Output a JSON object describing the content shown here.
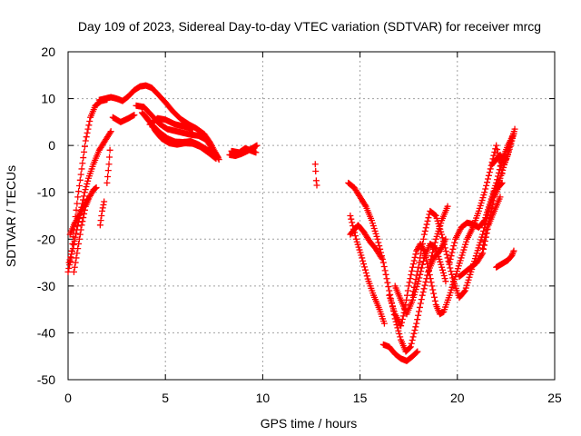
{
  "chart_data": {
    "type": "scatter",
    "title": "Day 109 of 2023, Sidereal Day-to-day VTEC variation (SDTVAR) for receiver mrcg",
    "xlabel": "GPS time / hours",
    "ylabel": "SDTVAR / TECUs",
    "xlim": [
      0,
      25
    ],
    "ylim": [
      -50,
      20
    ],
    "x_ticks": [
      "0",
      "5",
      "10",
      "15",
      "20",
      "25"
    ],
    "y_ticks": [
      "20",
      "10",
      "0",
      "-10",
      "-20",
      "-30",
      "-40",
      "-50"
    ],
    "x_tick_values": [
      0,
      5,
      10,
      15,
      20,
      25
    ],
    "y_tick_values": [
      20,
      10,
      0,
      -10,
      -20,
      -30,
      -40,
      -50
    ],
    "grid": true,
    "marker": "+",
    "color": "#ff0000",
    "tracks": [
      [
        [
          0.0,
          -27
        ],
        [
          0.15,
          -24
        ],
        [
          0.3,
          -18
        ],
        [
          0.5,
          -11
        ],
        [
          0.7,
          -5
        ],
        [
          0.9,
          1
        ],
        [
          1.15,
          6
        ],
        [
          1.4,
          8.5
        ],
        [
          1.7,
          9.5
        ],
        [
          2.0,
          9.8
        ]
      ],
      [
        [
          0.05,
          -25
        ],
        [
          0.25,
          -22
        ],
        [
          0.45,
          -18
        ],
        [
          0.65,
          -14
        ],
        [
          0.85,
          -10
        ],
        [
          1.05,
          -7
        ],
        [
          1.3,
          -4
        ],
        [
          1.6,
          -1
        ],
        [
          1.9,
          1
        ],
        [
          2.2,
          3
        ]
      ],
      [
        [
          0.3,
          -27
        ],
        [
          0.5,
          -22
        ],
        [
          0.7,
          -17
        ],
        [
          0.9,
          -13
        ],
        [
          1.1,
          -11
        ],
        [
          1.3,
          -9.5
        ],
        [
          1.45,
          -9
        ]
      ],
      [
        [
          0.1,
          -19
        ],
        [
          0.3,
          -17
        ],
        [
          0.55,
          -15
        ],
        [
          0.8,
          -13
        ],
        [
          1.0,
          -11.5
        ]
      ],
      [
        [
          1.65,
          -17
        ],
        [
          1.75,
          -14
        ],
        [
          1.85,
          -12
        ]
      ],
      [
        [
          2.0,
          -8
        ],
        [
          2.1,
          -4
        ],
        [
          2.15,
          -1
        ]
      ],
      [
        [
          2.3,
          6
        ],
        [
          2.7,
          5
        ],
        [
          3.1,
          5.8
        ],
        [
          3.4,
          6.5
        ]
      ],
      [
        [
          1.6,
          9.7
        ],
        [
          1.9,
          10
        ],
        [
          2.2,
          10.3
        ],
        [
          2.5,
          10
        ],
        [
          2.8,
          9.5
        ],
        [
          3.1,
          10.5
        ],
        [
          3.4,
          11.8
        ],
        [
          3.7,
          12.6
        ],
        [
          4.0,
          12.8
        ],
        [
          4.3,
          12.3
        ],
        [
          4.6,
          11
        ],
        [
          5.0,
          9.2
        ],
        [
          5.4,
          7.2
        ],
        [
          5.8,
          5.6
        ],
        [
          6.2,
          4.5
        ],
        [
          6.6,
          3.6
        ],
        [
          7.0,
          2.4
        ],
        [
          7.3,
          0.6
        ],
        [
          7.6,
          -1.8
        ],
        [
          7.75,
          -3
        ]
      ],
      [
        [
          3.5,
          8.5
        ],
        [
          3.9,
          8.2
        ],
        [
          4.3,
          6.4
        ],
        [
          4.7,
          4.6
        ],
        [
          5.1,
          3.5
        ],
        [
          5.5,
          3.1
        ],
        [
          5.9,
          2.7
        ],
        [
          6.3,
          2.3
        ],
        [
          6.7,
          2.1
        ],
        [
          7.1,
          1.2
        ],
        [
          7.4,
          -0.6
        ],
        [
          7.7,
          -2.5
        ]
      ],
      [
        [
          3.9,
          6.6
        ],
        [
          4.3,
          4.5
        ],
        [
          4.7,
          2.8
        ],
        [
          5.1,
          1.5
        ],
        [
          5.5,
          0.8
        ],
        [
          5.9,
          0.7
        ],
        [
          6.3,
          0.9
        ],
        [
          6.7,
          0.2
        ],
        [
          7.1,
          -0.8
        ],
        [
          7.5,
          -1.8
        ]
      ],
      [
        [
          3.8,
          7
        ],
        [
          4.2,
          5
        ],
        [
          4.5,
          3
        ],
        [
          4.8,
          1.5
        ],
        [
          5.2,
          0.5
        ],
        [
          5.6,
          0.2
        ],
        [
          6.0,
          0.5
        ],
        [
          6.4,
          0.4
        ],
        [
          6.8,
          -0.3
        ],
        [
          7.2,
          -1.5
        ],
        [
          7.6,
          -2.8
        ]
      ],
      [
        [
          4.2,
          4.5
        ],
        [
          4.6,
          5.8
        ],
        [
          5.0,
          5.5
        ],
        [
          5.5,
          4.5
        ],
        [
          6.0,
          4
        ],
        [
          6.4,
          3.5
        ]
      ],
      [
        [
          8.3,
          -2
        ],
        [
          8.6,
          -2.2
        ],
        [
          8.9,
          -1.8
        ],
        [
          9.2,
          -1.2
        ],
        [
          9.5,
          -0.5
        ],
        [
          9.7,
          0
        ]
      ],
      [
        [
          8.4,
          -1.2
        ],
        [
          8.8,
          -1.5
        ],
        [
          9.1,
          -0.6
        ],
        [
          9.4,
          -1.1
        ],
        [
          9.65,
          -1.5
        ]
      ],
      [
        [
          12.7,
          -4
        ],
        [
          12.72,
          -5.5
        ],
        [
          12.75,
          -7.5
        ],
        [
          12.78,
          -8.5
        ]
      ],
      [
        [
          14.4,
          -8
        ],
        [
          14.7,
          -9
        ],
        [
          15.0,
          -11
        ],
        [
          15.3,
          -13
        ],
        [
          15.6,
          -16
        ],
        [
          15.9,
          -20
        ],
        [
          16.2,
          -25
        ],
        [
          16.5,
          -31
        ],
        [
          16.8,
          -37
        ],
        [
          17.1,
          -41.5
        ],
        [
          17.35,
          -44
        ],
        [
          17.6,
          -43
        ],
        [
          17.9,
          -38
        ],
        [
          18.2,
          -32
        ],
        [
          18.5,
          -27
        ],
        [
          18.8,
          -24
        ],
        [
          19.1,
          -22.5
        ],
        [
          19.4,
          -20
        ]
      ],
      [
        [
          14.5,
          -15
        ],
        [
          14.8,
          -20
        ],
        [
          15.1,
          -24
        ],
        [
          15.4,
          -28.5
        ],
        [
          15.7,
          -32
        ],
        [
          16.0,
          -35
        ],
        [
          16.25,
          -38
        ]
      ],
      [
        [
          14.5,
          -19
        ],
        [
          14.9,
          -17
        ],
        [
          15.2,
          -18.5
        ],
        [
          15.5,
          -20.5
        ],
        [
          15.8,
          -22
        ],
        [
          16.1,
          -24
        ]
      ],
      [
        [
          16.2,
          -42.5
        ],
        [
          16.5,
          -43
        ],
        [
          16.8,
          -44.5
        ],
        [
          17.1,
          -45.5
        ],
        [
          17.4,
          -46
        ],
        [
          17.7,
          -45
        ],
        [
          17.95,
          -44
        ]
      ],
      [
        [
          16.5,
          -32
        ],
        [
          16.8,
          -36
        ],
        [
          17.1,
          -38.5
        ],
        [
          17.3,
          -35
        ],
        [
          17.5,
          -30
        ],
        [
          17.7,
          -26
        ],
        [
          17.9,
          -22.5
        ],
        [
          18.1,
          -21
        ],
        [
          18.3,
          -22.5
        ],
        [
          18.5,
          -26
        ],
        [
          18.7,
          -30
        ],
        [
          18.9,
          -34
        ],
        [
          19.1,
          -36
        ],
        [
          19.3,
          -35.5
        ],
        [
          19.6,
          -32
        ],
        [
          19.9,
          -28
        ],
        [
          20.2,
          -24
        ],
        [
          20.5,
          -20
        ],
        [
          20.8,
          -17.5
        ],
        [
          21.1,
          -14
        ],
        [
          21.4,
          -10
        ],
        [
          21.7,
          -5
        ],
        [
          22.0,
          0
        ],
        [
          22.3,
          -6
        ]
      ],
      [
        [
          16.8,
          -30
        ],
        [
          17.1,
          -33
        ],
        [
          17.4,
          -36
        ],
        [
          17.7,
          -33
        ],
        [
          18.0,
          -29
        ],
        [
          18.3,
          -24
        ],
        [
          18.6,
          -21
        ],
        [
          18.9,
          -22
        ],
        [
          19.2,
          -26
        ],
        [
          19.4,
          -29
        ]
      ],
      [
        [
          17.7,
          -32
        ],
        [
          18.0,
          -26
        ],
        [
          18.3,
          -19
        ],
        [
          18.6,
          -14
        ],
        [
          18.9,
          -15
        ],
        [
          19.2,
          -19
        ],
        [
          19.5,
          -24
        ],
        [
          19.8,
          -29
        ],
        [
          20.1,
          -32.5
        ],
        [
          20.4,
          -31
        ],
        [
          20.7,
          -27
        ],
        [
          21.0,
          -23
        ],
        [
          21.3,
          -19
        ],
        [
          21.6,
          -14
        ],
        [
          21.9,
          -10
        ],
        [
          22.2,
          -7
        ],
        [
          22.5,
          -3
        ],
        [
          22.8,
          1.5
        ],
        [
          22.95,
          3.5
        ]
      ],
      [
        [
          18.6,
          -25
        ],
        [
          18.9,
          -20
        ],
        [
          19.2,
          -16
        ],
        [
          19.5,
          -13
        ]
      ],
      [
        [
          19.6,
          -25
        ],
        [
          19.9,
          -20
        ],
        [
          20.2,
          -17.5
        ],
        [
          20.5,
          -16.5
        ],
        [
          20.8,
          -16.8
        ],
        [
          21.1,
          -17.5
        ],
        [
          21.4,
          -16
        ],
        [
          21.7,
          -12
        ],
        [
          22.0,
          -8
        ],
        [
          22.3,
          -3
        ],
        [
          22.6,
          0
        ],
        [
          22.9,
          2.5
        ]
      ],
      [
        [
          20.1,
          -28
        ],
        [
          20.4,
          -27
        ],
        [
          20.7,
          -26
        ],
        [
          21.0,
          -25
        ],
        [
          21.3,
          -23
        ],
        [
          21.6,
          -17
        ],
        [
          21.9,
          -14
        ],
        [
          22.2,
          -11
        ]
      ],
      [
        [
          21.8,
          -4
        ],
        [
          22.0,
          -3
        ],
        [
          22.2,
          -2
        ],
        [
          22.4,
          -4
        ],
        [
          22.6,
          -2
        ],
        [
          22.8,
          1
        ],
        [
          22.9,
          2.5
        ]
      ],
      [
        [
          21.3,
          -22
        ],
        [
          21.5,
          -18
        ],
        [
          21.7,
          -15
        ],
        [
          21.9,
          -11
        ],
        [
          22.1,
          -9
        ],
        [
          22.3,
          -8
        ]
      ],
      [
        [
          22.0,
          -26
        ],
        [
          22.2,
          -25.5
        ],
        [
          22.4,
          -25
        ],
        [
          22.6,
          -24.5
        ],
        [
          22.8,
          -23.5
        ],
        [
          22.9,
          -22.5
        ]
      ]
    ]
  }
}
